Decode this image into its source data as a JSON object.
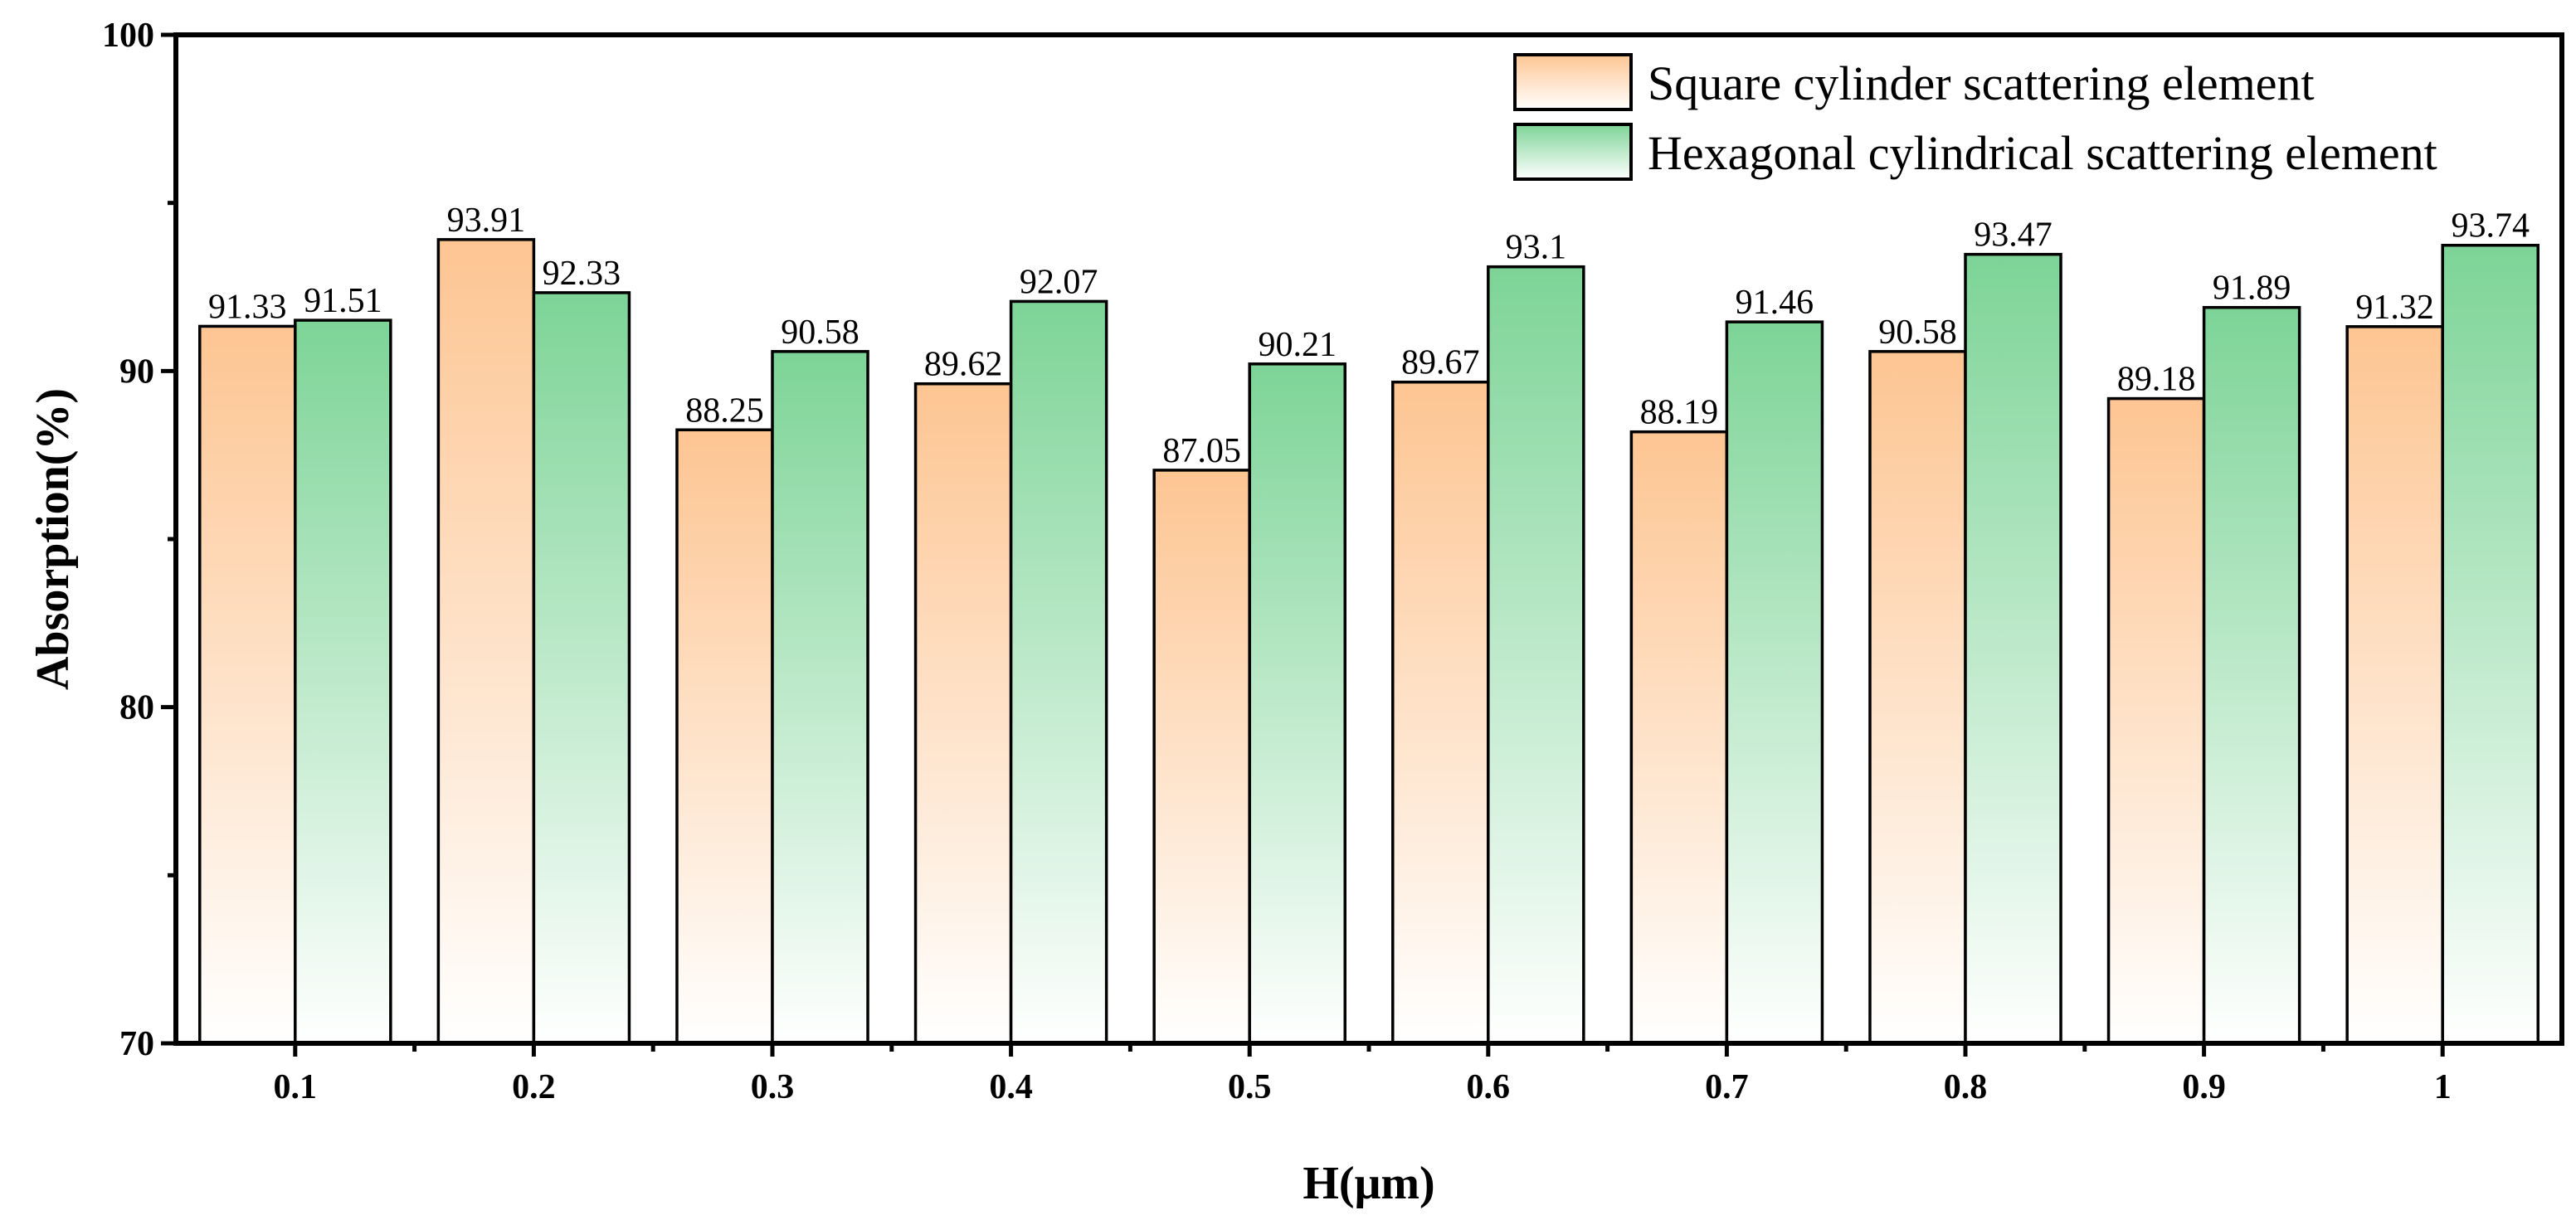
{
  "chart_data": {
    "type": "bar",
    "title": "",
    "xlabel": "H(μm)",
    "ylabel": "Absorption(%)",
    "ylim": [
      70,
      100
    ],
    "yticks": [
      "70",
      "80",
      "90",
      "100"
    ],
    "categories": [
      "0.1",
      "0.2",
      "0.3",
      "0.4",
      "0.5",
      "0.6",
      "0.7",
      "0.8",
      "0.9",
      "1"
    ],
    "legend_position": "top-right",
    "grid": false,
    "series": [
      {
        "name": "Square cylinder scattering element",
        "color": "#fdc592",
        "values": [
          91.33,
          93.91,
          88.25,
          89.62,
          87.05,
          89.67,
          88.19,
          90.58,
          89.18,
          91.32
        ],
        "labels": [
          "91.33",
          "93.91",
          "88.25",
          "89.62",
          "87.05",
          "89.67",
          "88.19",
          "90.58",
          "89.18",
          "91.32"
        ]
      },
      {
        "name": "Hexagonal cylindrical scattering element",
        "color": "#7dd497",
        "values": [
          91.51,
          92.33,
          90.58,
          92.07,
          90.21,
          93.1,
          91.46,
          93.47,
          91.89,
          93.74
        ],
        "labels": [
          "91.51",
          "92.33",
          "90.58",
          "92.07",
          "90.21",
          "93.1",
          "91.46",
          "93.47",
          "91.89",
          "93.74"
        ]
      }
    ]
  }
}
